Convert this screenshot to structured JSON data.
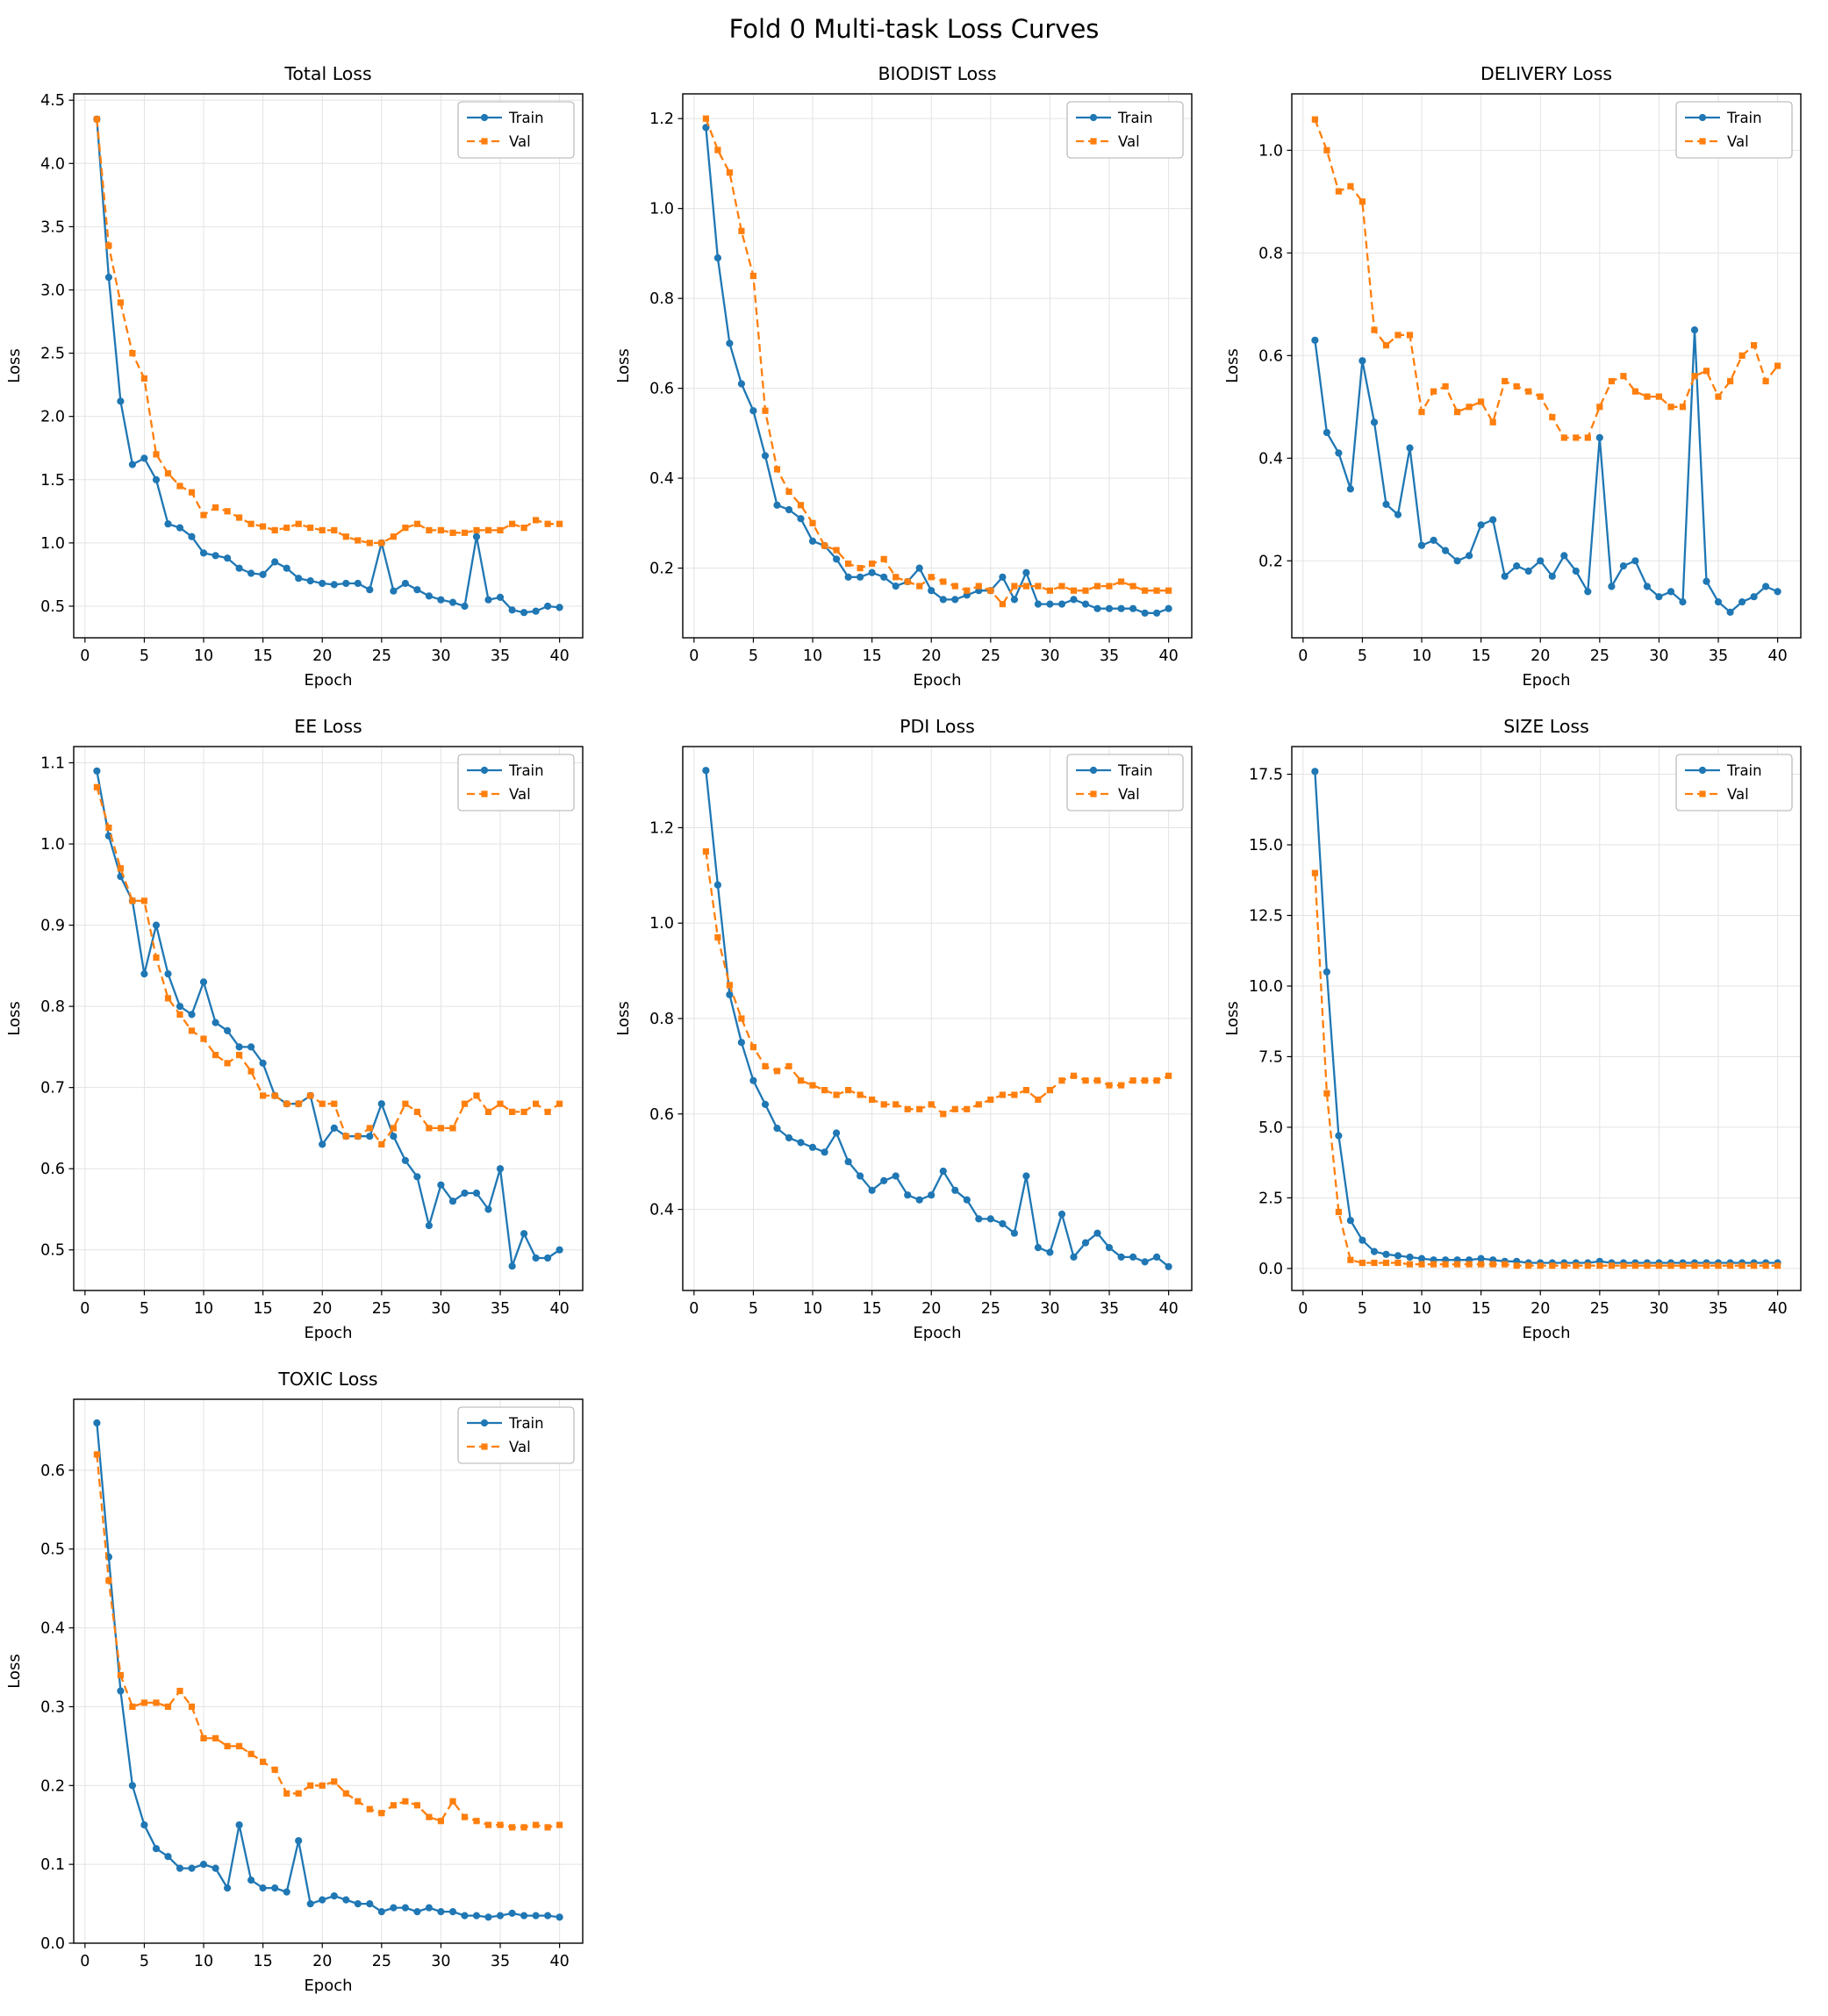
{
  "page_title": "Fold 0 Multi-task Loss Curves",
  "colors": {
    "train": "#1f77b4",
    "val": "#ff7f0e",
    "grid": "#e3e3e3",
    "axis": "#000000",
    "legend_border": "#b0b0b0"
  },
  "epochs": [
    1,
    2,
    3,
    4,
    5,
    6,
    7,
    8,
    9,
    10,
    11,
    12,
    13,
    14,
    15,
    16,
    17,
    18,
    19,
    20,
    21,
    22,
    23,
    24,
    25,
    26,
    27,
    28,
    29,
    30,
    31,
    32,
    33,
    34,
    35,
    36,
    37,
    38,
    39,
    40
  ],
  "chart_data": [
    {
      "type": "line",
      "title": "Total Loss",
      "xlabel": "Epoch",
      "ylabel": "Loss",
      "legend_position": "upper right",
      "grid": true,
      "xlim": [
        -0.95,
        41.95
      ],
      "ylim": [
        0.25,
        4.55
      ],
      "xticks": [
        0,
        5,
        10,
        15,
        20,
        25,
        30,
        35,
        40
      ],
      "yticks": [
        0.5,
        1.0,
        1.5,
        2.0,
        2.5,
        3.0,
        3.5,
        4.0,
        4.5
      ],
      "series": [
        {
          "name": "Train",
          "values": [
            4.35,
            3.1,
            2.12,
            1.62,
            1.67,
            1.5,
            1.15,
            1.12,
            1.05,
            0.92,
            0.9,
            0.88,
            0.8,
            0.76,
            0.75,
            0.85,
            0.8,
            0.72,
            0.7,
            0.68,
            0.67,
            0.68,
            0.68,
            0.63,
            1.0,
            0.62,
            0.68,
            0.63,
            0.58,
            0.55,
            0.53,
            0.5,
            1.05,
            0.55,
            0.57,
            0.47,
            0.45,
            0.46,
            0.5,
            0.49
          ]
        },
        {
          "name": "Val",
          "values": [
            4.35,
            3.35,
            2.9,
            2.5,
            2.3,
            1.7,
            1.55,
            1.45,
            1.4,
            1.22,
            1.28,
            1.25,
            1.2,
            1.15,
            1.13,
            1.1,
            1.12,
            1.15,
            1.12,
            1.1,
            1.1,
            1.05,
            1.02,
            1.0,
            1.0,
            1.05,
            1.12,
            1.15,
            1.1,
            1.1,
            1.08,
            1.08,
            1.1,
            1.1,
            1.1,
            1.15,
            1.12,
            1.18,
            1.15,
            1.15
          ]
        }
      ]
    },
    {
      "type": "line",
      "title": "BIODIST Loss",
      "xlabel": "Epoch",
      "ylabel": "Loss",
      "legend_position": "upper right",
      "grid": true,
      "xlim": [
        -0.95,
        41.95
      ],
      "ylim": [
        0.045,
        1.255
      ],
      "xticks": [
        0,
        5,
        10,
        15,
        20,
        25,
        30,
        35,
        40
      ],
      "yticks": [
        0.2,
        0.4,
        0.6,
        0.8,
        1.0,
        1.2
      ],
      "series": [
        {
          "name": "Train",
          "values": [
            1.18,
            0.89,
            0.7,
            0.61,
            0.55,
            0.45,
            0.34,
            0.33,
            0.31,
            0.26,
            0.25,
            0.22,
            0.18,
            0.18,
            0.19,
            0.18,
            0.16,
            0.17,
            0.2,
            0.15,
            0.13,
            0.13,
            0.14,
            0.15,
            0.15,
            0.18,
            0.13,
            0.19,
            0.12,
            0.12,
            0.12,
            0.13,
            0.12,
            0.11,
            0.11,
            0.11,
            0.11,
            0.1,
            0.1,
            0.11
          ]
        },
        {
          "name": "Val",
          "values": [
            1.2,
            1.13,
            1.08,
            0.95,
            0.85,
            0.55,
            0.42,
            0.37,
            0.34,
            0.3,
            0.25,
            0.24,
            0.21,
            0.2,
            0.21,
            0.22,
            0.18,
            0.17,
            0.16,
            0.18,
            0.17,
            0.16,
            0.15,
            0.16,
            0.15,
            0.12,
            0.16,
            0.16,
            0.16,
            0.15,
            0.16,
            0.15,
            0.15,
            0.16,
            0.16,
            0.17,
            0.16,
            0.15,
            0.15,
            0.15
          ]
        }
      ]
    },
    {
      "type": "line",
      "title": "DELIVERY Loss",
      "xlabel": "Epoch",
      "ylabel": "Loss",
      "legend_position": "upper right",
      "grid": true,
      "xlim": [
        -0.95,
        41.95
      ],
      "ylim": [
        0.05,
        1.11
      ],
      "xticks": [
        0,
        5,
        10,
        15,
        20,
        25,
        30,
        35,
        40
      ],
      "yticks": [
        0.2,
        0.4,
        0.6,
        0.8,
        1.0
      ],
      "series": [
        {
          "name": "Train",
          "values": [
            0.63,
            0.45,
            0.41,
            0.34,
            0.59,
            0.47,
            0.31,
            0.29,
            0.42,
            0.23,
            0.24,
            0.22,
            0.2,
            0.21,
            0.27,
            0.28,
            0.17,
            0.19,
            0.18,
            0.2,
            0.17,
            0.21,
            0.18,
            0.14,
            0.44,
            0.15,
            0.19,
            0.2,
            0.15,
            0.13,
            0.14,
            0.12,
            0.65,
            0.16,
            0.12,
            0.1,
            0.12,
            0.13,
            0.15,
            0.14
          ]
        },
        {
          "name": "Val",
          "values": [
            1.06,
            1.0,
            0.92,
            0.93,
            0.9,
            0.65,
            0.62,
            0.64,
            0.64,
            0.49,
            0.53,
            0.54,
            0.49,
            0.5,
            0.51,
            0.47,
            0.55,
            0.54,
            0.53,
            0.52,
            0.48,
            0.44,
            0.44,
            0.44,
            0.5,
            0.55,
            0.56,
            0.53,
            0.52,
            0.52,
            0.5,
            0.5,
            0.56,
            0.57,
            0.52,
            0.55,
            0.6,
            0.62,
            0.55,
            0.58
          ]
        }
      ]
    },
    {
      "type": "line",
      "title": "EE Loss",
      "xlabel": "Epoch",
      "ylabel": "Loss",
      "legend_position": "upper right",
      "grid": true,
      "xlim": [
        -0.95,
        41.95
      ],
      "ylim": [
        0.45,
        1.12
      ],
      "xticks": [
        0,
        5,
        10,
        15,
        20,
        25,
        30,
        35,
        40
      ],
      "yticks": [
        0.5,
        0.6,
        0.7,
        0.8,
        0.9,
        1.0,
        1.1
      ],
      "series": [
        {
          "name": "Train",
          "values": [
            1.09,
            1.01,
            0.96,
            0.93,
            0.84,
            0.9,
            0.84,
            0.8,
            0.79,
            0.83,
            0.78,
            0.77,
            0.75,
            0.75,
            0.73,
            0.69,
            0.68,
            0.68,
            0.69,
            0.63,
            0.65,
            0.64,
            0.64,
            0.64,
            0.68,
            0.64,
            0.61,
            0.59,
            0.53,
            0.58,
            0.56,
            0.57,
            0.57,
            0.55,
            0.6,
            0.48,
            0.52,
            0.49,
            0.49,
            0.5
          ]
        },
        {
          "name": "Val",
          "values": [
            1.07,
            1.02,
            0.97,
            0.93,
            0.93,
            0.86,
            0.81,
            0.79,
            0.77,
            0.76,
            0.74,
            0.73,
            0.74,
            0.72,
            0.69,
            0.69,
            0.68,
            0.68,
            0.69,
            0.68,
            0.68,
            0.64,
            0.64,
            0.65,
            0.63,
            0.65,
            0.68,
            0.67,
            0.65,
            0.65,
            0.65,
            0.68,
            0.69,
            0.67,
            0.68,
            0.67,
            0.67,
            0.68,
            0.67,
            0.68
          ]
        }
      ]
    },
    {
      "type": "line",
      "title": "PDI Loss",
      "xlabel": "Epoch",
      "ylabel": "Loss",
      "legend_position": "upper right",
      "grid": true,
      "xlim": [
        -0.95,
        41.95
      ],
      "ylim": [
        0.23,
        1.37
      ],
      "xticks": [
        0,
        5,
        10,
        15,
        20,
        25,
        30,
        35,
        40
      ],
      "yticks": [
        0.4,
        0.6,
        0.8,
        1.0,
        1.2
      ],
      "series": [
        {
          "name": "Train",
          "values": [
            1.32,
            1.08,
            0.85,
            0.75,
            0.67,
            0.62,
            0.57,
            0.55,
            0.54,
            0.53,
            0.52,
            0.56,
            0.5,
            0.47,
            0.44,
            0.46,
            0.47,
            0.43,
            0.42,
            0.43,
            0.48,
            0.44,
            0.42,
            0.38,
            0.38,
            0.37,
            0.35,
            0.47,
            0.32,
            0.31,
            0.39,
            0.3,
            0.33,
            0.35,
            0.32,
            0.3,
            0.3,
            0.29,
            0.3,
            0.28
          ]
        },
        {
          "name": "Val",
          "values": [
            1.15,
            0.97,
            0.87,
            0.8,
            0.74,
            0.7,
            0.69,
            0.7,
            0.67,
            0.66,
            0.65,
            0.64,
            0.65,
            0.64,
            0.63,
            0.62,
            0.62,
            0.61,
            0.61,
            0.62,
            0.6,
            0.61,
            0.61,
            0.62,
            0.63,
            0.64,
            0.64,
            0.65,
            0.63,
            0.65,
            0.67,
            0.68,
            0.67,
            0.67,
            0.66,
            0.66,
            0.67,
            0.67,
            0.67,
            0.68
          ]
        }
      ]
    },
    {
      "type": "line",
      "title": "SIZE Loss",
      "xlabel": "Epoch",
      "ylabel": "Loss",
      "legend_position": "upper right",
      "grid": true,
      "xlim": [
        -0.95,
        41.95
      ],
      "ylim": [
        -0.78,
        18.48
      ],
      "xticks": [
        0,
        5,
        10,
        15,
        20,
        25,
        30,
        35,
        40
      ],
      "yticks": [
        0.0,
        2.5,
        5.0,
        7.5,
        10.0,
        12.5,
        15.0,
        17.5
      ],
      "series": [
        {
          "name": "Train",
          "values": [
            17.6,
            10.5,
            4.7,
            1.7,
            1.0,
            0.6,
            0.5,
            0.45,
            0.4,
            0.35,
            0.3,
            0.3,
            0.3,
            0.3,
            0.35,
            0.3,
            0.25,
            0.25,
            0.2,
            0.2,
            0.2,
            0.2,
            0.2,
            0.2,
            0.25,
            0.2,
            0.2,
            0.2,
            0.2,
            0.2,
            0.2,
            0.2,
            0.2,
            0.2,
            0.2,
            0.2,
            0.2,
            0.2,
            0.2,
            0.2
          ]
        },
        {
          "name": "Val",
          "values": [
            14.0,
            6.2,
            2.0,
            0.3,
            0.2,
            0.2,
            0.2,
            0.2,
            0.15,
            0.15,
            0.15,
            0.15,
            0.15,
            0.15,
            0.15,
            0.15,
            0.15,
            0.1,
            0.1,
            0.1,
            0.1,
            0.1,
            0.1,
            0.1,
            0.1,
            0.1,
            0.1,
            0.1,
            0.1,
            0.1,
            0.1,
            0.1,
            0.1,
            0.1,
            0.1,
            0.1,
            0.1,
            0.1,
            0.1,
            0.1
          ]
        }
      ]
    },
    {
      "type": "line",
      "title": "TOXIC Loss",
      "xlabel": "Epoch",
      "ylabel": "Loss",
      "legend_position": "upper right",
      "grid": true,
      "xlim": [
        -0.95,
        41.95
      ],
      "ylim": [
        0.0,
        0.69
      ],
      "xticks": [
        0,
        5,
        10,
        15,
        20,
        25,
        30,
        35,
        40
      ],
      "yticks": [
        0.0,
        0.1,
        0.2,
        0.3,
        0.4,
        0.5,
        0.6
      ],
      "series": [
        {
          "name": "Train",
          "values": [
            0.66,
            0.49,
            0.32,
            0.2,
            0.15,
            0.12,
            0.11,
            0.095,
            0.095,
            0.1,
            0.095,
            0.07,
            0.15,
            0.08,
            0.07,
            0.07,
            0.065,
            0.13,
            0.05,
            0.055,
            0.06,
            0.055,
            0.05,
            0.05,
            0.04,
            0.045,
            0.045,
            0.04,
            0.045,
            0.04,
            0.04,
            0.035,
            0.035,
            0.033,
            0.035,
            0.038,
            0.035,
            0.035,
            0.035,
            0.033
          ]
        },
        {
          "name": "Val",
          "values": [
            0.62,
            0.46,
            0.34,
            0.3,
            0.305,
            0.305,
            0.3,
            0.32,
            0.3,
            0.26,
            0.26,
            0.25,
            0.25,
            0.24,
            0.23,
            0.22,
            0.19,
            0.19,
            0.2,
            0.2,
            0.205,
            0.19,
            0.18,
            0.17,
            0.165,
            0.175,
            0.18,
            0.175,
            0.16,
            0.155,
            0.18,
            0.16,
            0.155,
            0.15,
            0.15,
            0.147,
            0.147,
            0.15,
            0.147,
            0.15
          ]
        }
      ]
    }
  ]
}
